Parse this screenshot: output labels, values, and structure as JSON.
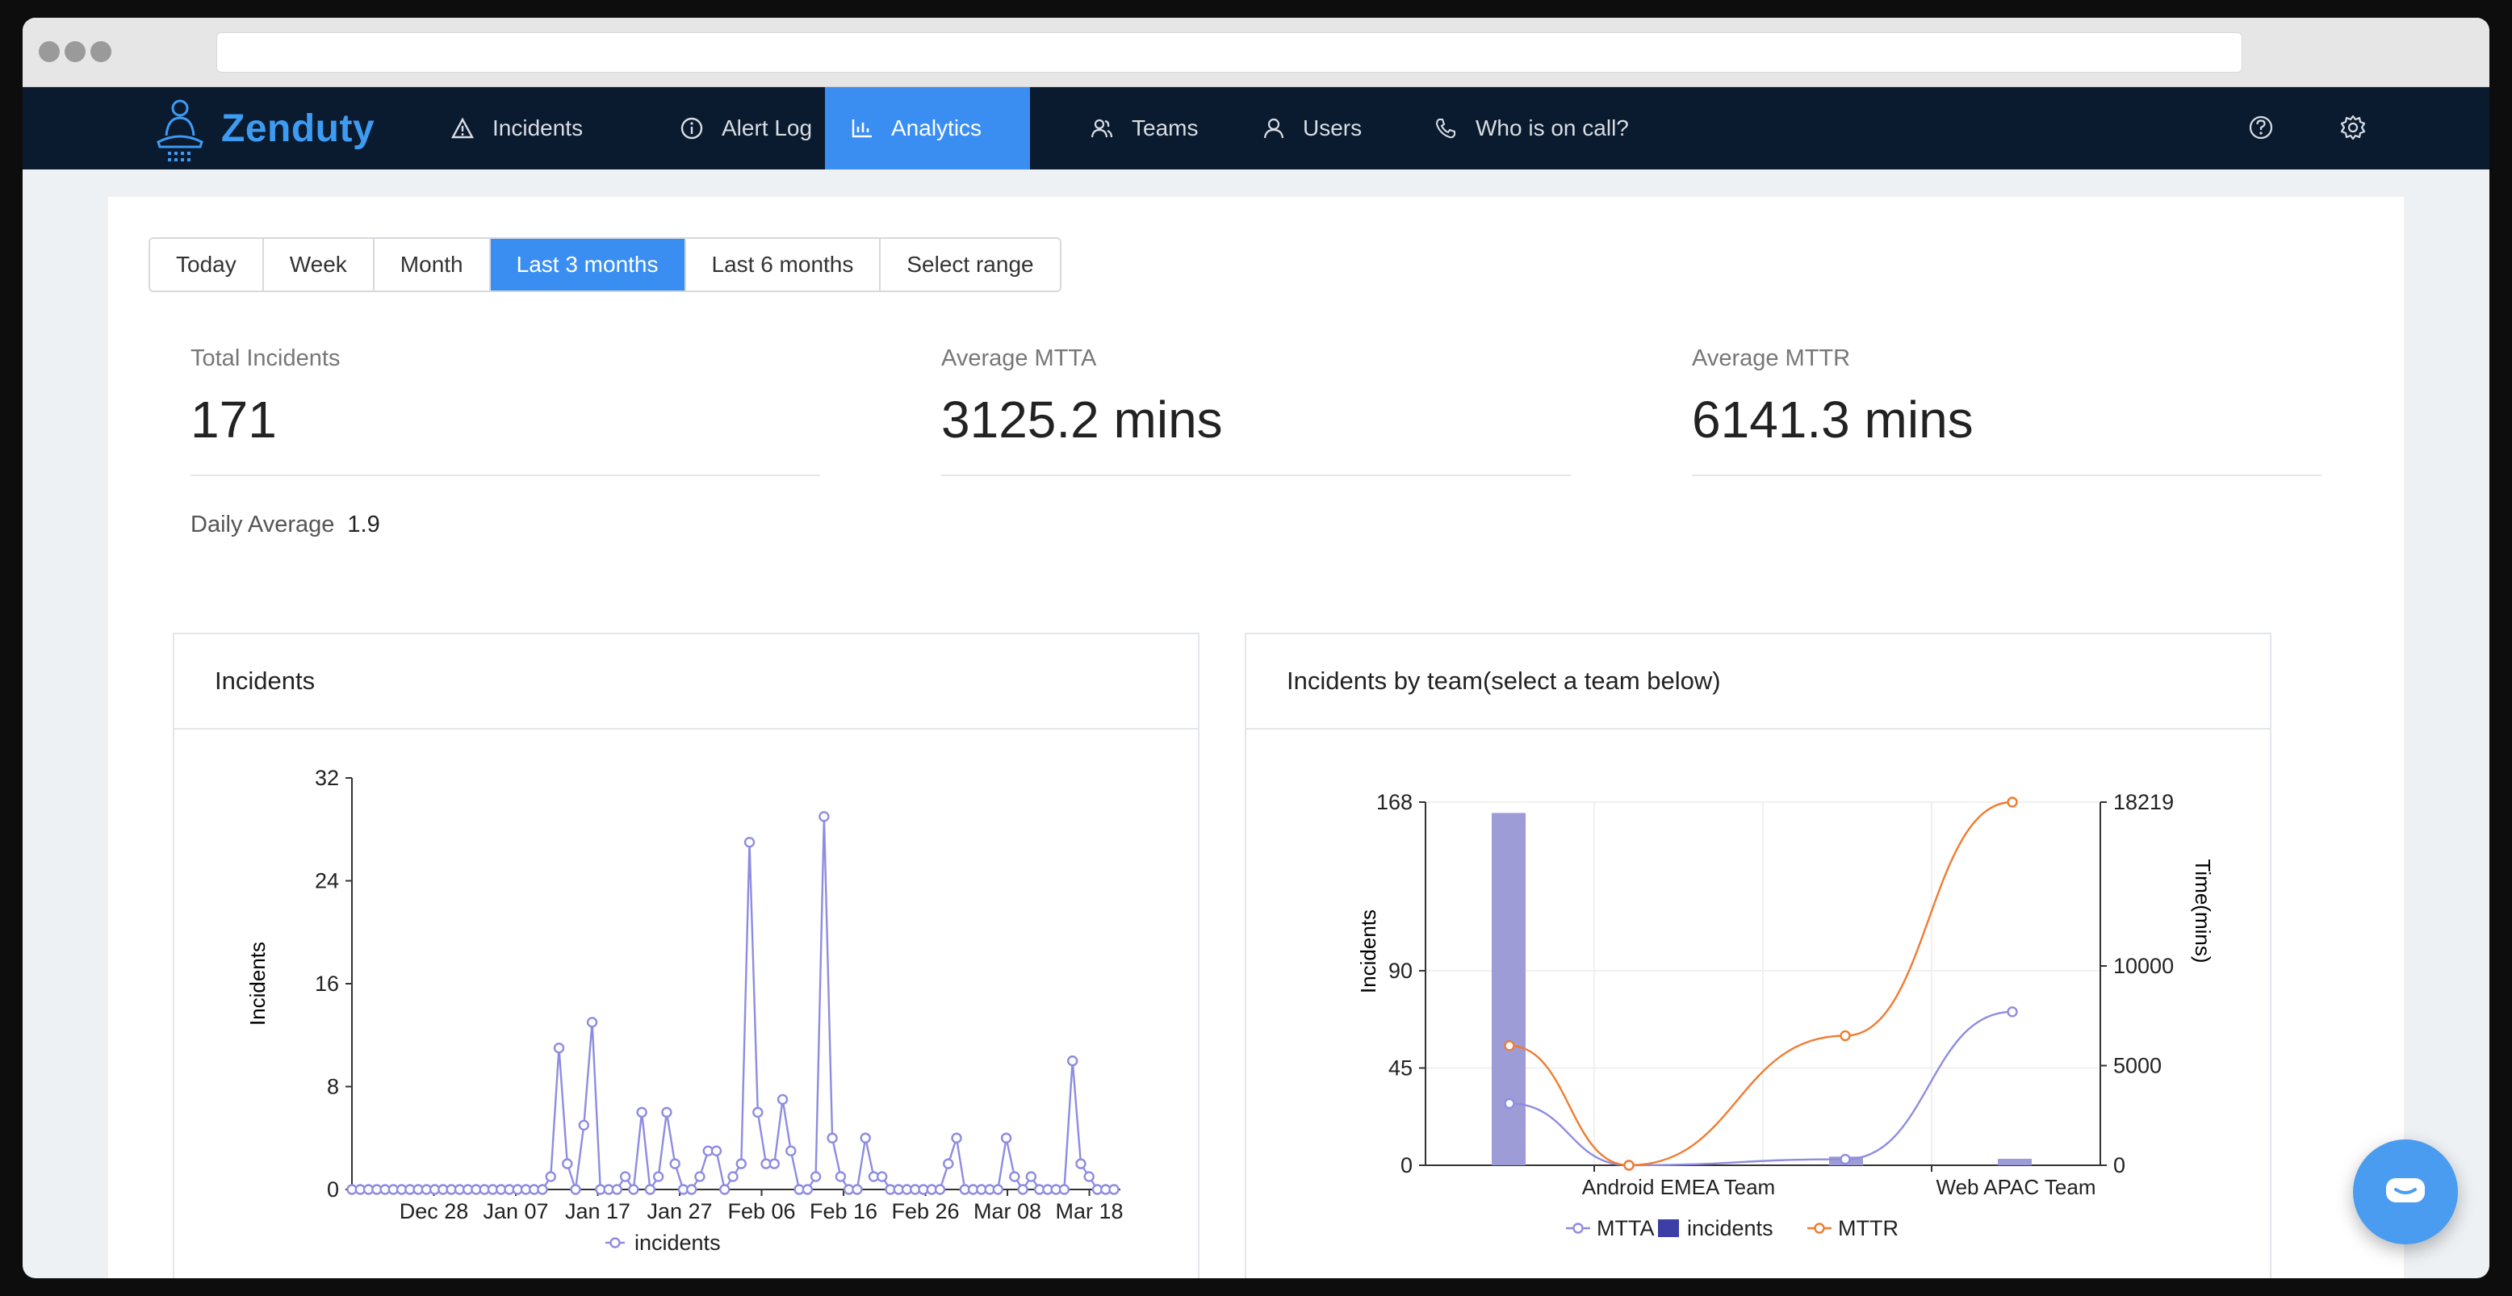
{
  "window": {
    "title": ""
  },
  "brand": {
    "name": "Zenduty",
    "accent": "#3a8ef2",
    "nav_bg": "#0a1a2f"
  },
  "nav": {
    "items": [
      {
        "label": "Incidents",
        "icon": "warning-triangle-icon"
      },
      {
        "label": "Alert Log",
        "icon": "info-circle-icon"
      },
      {
        "label": "Analytics",
        "icon": "bar-chart-icon",
        "active": true
      },
      {
        "label": "Teams",
        "icon": "teams-icon"
      },
      {
        "label": "Users",
        "icon": "user-icon"
      },
      {
        "label": "Who is on call?",
        "icon": "phone-icon"
      }
    ],
    "right_icons": [
      "help-circle-icon",
      "gear-icon"
    ]
  },
  "range": {
    "options": [
      "Today",
      "Week",
      "Month",
      "Last 3 months",
      "Last 6 months",
      "Select range"
    ],
    "selected": "Last 3 months"
  },
  "stats": {
    "total": {
      "label": "Total Incidents",
      "value": "171"
    },
    "mtta": {
      "label": "Average MTTA",
      "value": "3125.2 mins"
    },
    "mttr": {
      "label": "Average MTTR",
      "value": "6141.3 mins"
    },
    "daily": {
      "label": "Daily Average",
      "value": "1.9"
    }
  },
  "panels": {
    "incidents": {
      "title": "Incidents"
    },
    "by_team": {
      "title": "Incidents by team(select a team below)"
    }
  },
  "chart_data": [
    {
      "type": "line",
      "title": "Incidents",
      "ylabel": "Incidents",
      "xlabel": "",
      "ylim": [
        0,
        32
      ],
      "yticks": [
        0,
        8,
        16,
        24,
        32
      ],
      "xticks": [
        "Dec 28",
        "Jan 07",
        "Jan 17",
        "Jan 27",
        "Feb 06",
        "Feb 16",
        "Feb 26",
        "Mar 08",
        "Mar 18"
      ],
      "series": [
        {
          "name": "incidents",
          "color": "#8e8ce0",
          "values": [
            0,
            0,
            0,
            0,
            0,
            0,
            0,
            0,
            0,
            0,
            0,
            0,
            0,
            0,
            0,
            0,
            0,
            0,
            0,
            0,
            0,
            0,
            0,
            0,
            1,
            11,
            2,
            0,
            5,
            13,
            0,
            0,
            0,
            1,
            0,
            6,
            0,
            1,
            6,
            2,
            0,
            0,
            1,
            3,
            3,
            0,
            1,
            2,
            27,
            6,
            2,
            2,
            7,
            3,
            0,
            0,
            1,
            29,
            4,
            1,
            0,
            0,
            4,
            1,
            1,
            0,
            0,
            0,
            0,
            0,
            0,
            0,
            2,
            4,
            0,
            0,
            0,
            0,
            0,
            4,
            1,
            0,
            1,
            0,
            0,
            0,
            0,
            10,
            2,
            1,
            0,
            0,
            0
          ]
        }
      ],
      "grid": false,
      "legend": "bottom"
    },
    {
      "type": "bar",
      "title": "Incidents by team(select a team below)",
      "ylabel": "Incidents",
      "y2label": "Time(mins)",
      "ylim": [
        0,
        168
      ],
      "yticks": [
        0,
        45,
        90,
        168
      ],
      "y2lim": [
        0,
        18219
      ],
      "y2ticks": [
        0,
        5000,
        10000,
        18219
      ],
      "categories": [
        "",
        "Android EMEA Team",
        "",
        "Web APAC Team"
      ],
      "series": [
        {
          "name": "MTTA",
          "kind": "line",
          "axis": "right",
          "color": "#8e8ce0",
          "values": [
            3100,
            0,
            300,
            7700
          ]
        },
        {
          "name": "incidents",
          "kind": "bar",
          "axis": "left",
          "color": "#8e8ce0",
          "values": [
            163,
            0,
            4,
            3
          ]
        },
        {
          "name": "MTTR",
          "kind": "line",
          "axis": "right",
          "color": "#f07c30",
          "values": [
            6000,
            0,
            6500,
            18219
          ]
        }
      ],
      "grid": true,
      "legend": "bottom"
    }
  ]
}
